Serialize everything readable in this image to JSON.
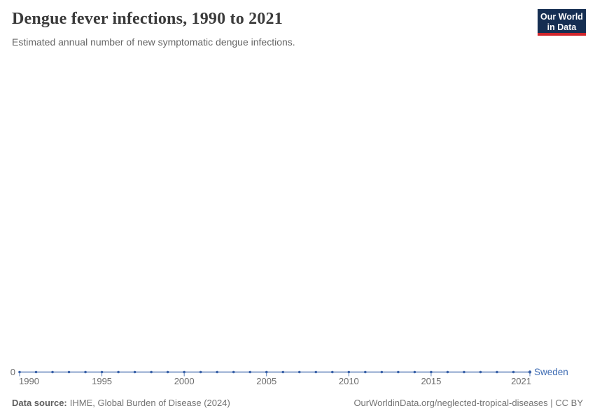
{
  "header": {
    "title": "Dengue fever infections, 1990 to 2021",
    "subtitle": "Estimated annual number of new symptomatic dengue infections.",
    "logo": {
      "line1": "Our World",
      "line2": "in Data"
    }
  },
  "footer": {
    "source_label": "Data source:",
    "source_text": "IHME, Global Burden of Disease (2024)",
    "attribution": "OurWorldinData.org/neglected-tropical-diseases | CC BY"
  },
  "colors": {
    "logo_navy": "#152e52",
    "logo_red": "#d0262c",
    "title_text": "#3b3b3b",
    "subtitle_text": "#666666",
    "footer_text": "#737373"
  },
  "chart_data": {
    "type": "line",
    "title": "Dengue fever infections, 1990 to 2021",
    "subtitle": "Estimated annual number of new symptomatic dengue infections.",
    "xlabel": "",
    "ylabel": "",
    "x": [
      1990,
      1991,
      1992,
      1993,
      1994,
      1995,
      1996,
      1997,
      1998,
      1999,
      2000,
      2001,
      2002,
      2003,
      2004,
      2005,
      2006,
      2007,
      2008,
      2009,
      2010,
      2011,
      2012,
      2013,
      2014,
      2015,
      2016,
      2017,
      2018,
      2019,
      2020,
      2021
    ],
    "series": [
      {
        "name": "Sweden",
        "values": [
          0,
          0,
          0,
          0,
          0,
          0,
          0,
          0,
          0,
          0,
          0,
          0,
          0,
          0,
          0,
          0,
          0,
          0,
          0,
          0,
          0,
          0,
          0,
          0,
          0,
          0,
          0,
          0,
          0,
          0,
          0,
          0
        ]
      }
    ],
    "x_tick_labels": [
      "1990",
      "1995",
      "2000",
      "2005",
      "2010",
      "2015",
      "2021"
    ],
    "y_tick_labels": [
      "0"
    ],
    "ylim": [
      0,
      0
    ],
    "grid": false,
    "legend_position": "end-of-line",
    "markers": true,
    "colors": {
      "line": "#5b7fb8",
      "marker": "#3a62a8",
      "entity_label": "#3d6bb3",
      "axis_text": "#6b6b6b"
    }
  }
}
